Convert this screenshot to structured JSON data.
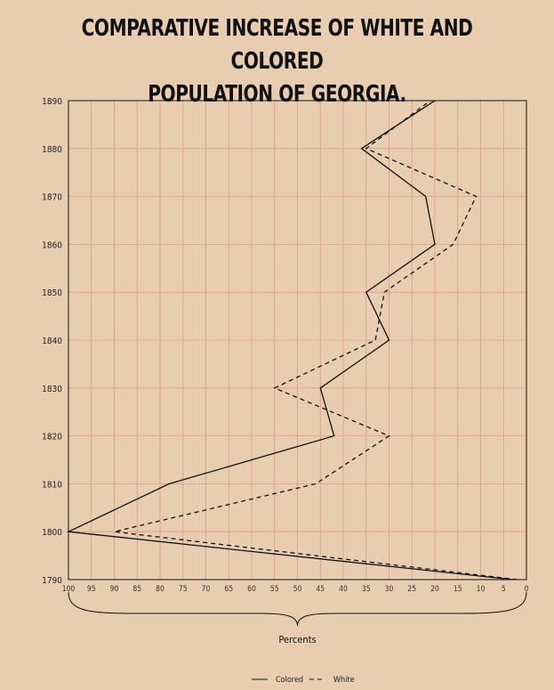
{
  "chart_data": {
    "type": "line",
    "title_line1": "COMPARATIVE INCREASE OF WHITE AND COLORED",
    "title_line2": "POPULATION OF GEORGIA.",
    "xlabel": "Percents",
    "x_axis": "percent",
    "y_axis": "year",
    "xlim": [
      100,
      0
    ],
    "ylim": [
      1790,
      1890
    ],
    "x_ticks": [
      "100",
      "95",
      "90",
      "85",
      "80",
      "75",
      "70",
      "65",
      "60",
      "55",
      "50",
      "45",
      "40",
      "35",
      "30",
      "25",
      "20",
      "15",
      "10",
      "5",
      "0"
    ],
    "y_ticks": [
      "1890",
      "1880",
      "1870",
      "1860",
      "1850",
      "1840",
      "1830",
      "1820",
      "1810",
      "1800",
      "1790"
    ],
    "grid": true,
    "legend_position": "bottom-center",
    "series": [
      {
        "name": "Colored",
        "style": "solid",
        "color": "#111111",
        "points": [
          {
            "year": 1790,
            "percent": 3
          },
          {
            "year": 1800,
            "percent": 100
          },
          {
            "year": 1810,
            "percent": 78
          },
          {
            "year": 1820,
            "percent": 42
          },
          {
            "year": 1830,
            "percent": 45
          },
          {
            "year": 1840,
            "percent": 30
          },
          {
            "year": 1850,
            "percent": 35
          },
          {
            "year": 1860,
            "percent": 20
          },
          {
            "year": 1870,
            "percent": 22
          },
          {
            "year": 1880,
            "percent": 36
          },
          {
            "year": 1890,
            "percent": 20
          }
        ]
      },
      {
        "name": "White",
        "style": "dashed",
        "color": "#111111",
        "points": [
          {
            "year": 1790,
            "percent": 2
          },
          {
            "year": 1800,
            "percent": 90
          },
          {
            "year": 1810,
            "percent": 46
          },
          {
            "year": 1820,
            "percent": 30
          },
          {
            "year": 1830,
            "percent": 55
          },
          {
            "year": 1840,
            "percent": 33
          },
          {
            "year": 1850,
            "percent": 31
          },
          {
            "year": 1860,
            "percent": 16
          },
          {
            "year": 1870,
            "percent": 11
          },
          {
            "year": 1880,
            "percent": 35
          },
          {
            "year": 1890,
            "percent": 21
          }
        ]
      }
    ]
  },
  "colors": {
    "background": "#e8cdb0",
    "grid": "#dc9a8c",
    "axis": "#111111"
  }
}
